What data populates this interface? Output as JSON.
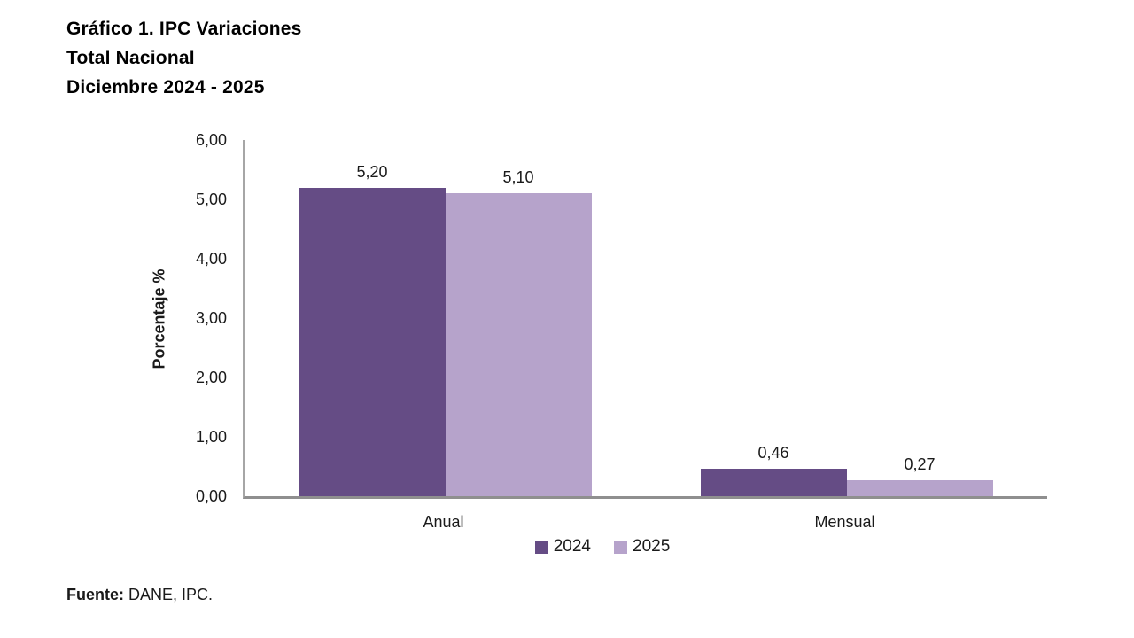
{
  "title": {
    "line1": "Gráfico 1. IPC Variaciones",
    "line2": "Total Nacional",
    "line3": "Diciembre 2024 - 2025"
  },
  "source": {
    "label": "Fuente:",
    "text": "DANE, IPC."
  },
  "chart_data": {
    "type": "bar",
    "title": "Gráfico 1. IPC Variaciones Total Nacional Diciembre 2024 - 2025",
    "categories": [
      "Anual",
      "Mensual"
    ],
    "series": [
      {
        "name": "2024",
        "color": "#654c85",
        "values": [
          5.2,
          0.46
        ],
        "value_labels": [
          "5,20",
          "0,46"
        ]
      },
      {
        "name": "2025",
        "color": "#b6a3cb",
        "values": [
          5.1,
          0.27
        ],
        "value_labels": [
          "5,10",
          "0,27"
        ]
      }
    ],
    "xlabel": "",
    "ylabel": "Porcentaje %",
    "ylim": [
      0,
      6
    ],
    "ytick_values": [
      0,
      1,
      2,
      3,
      4,
      5,
      6
    ],
    "ytick_labels": [
      "0,00",
      "1,00",
      "2,00",
      "3,00",
      "4,00",
      "5,00",
      "6,00"
    ],
    "grid": false,
    "legend_position": "bottom",
    "axis_color": "#a6a6a6",
    "text_color": "#1a1a1a"
  }
}
